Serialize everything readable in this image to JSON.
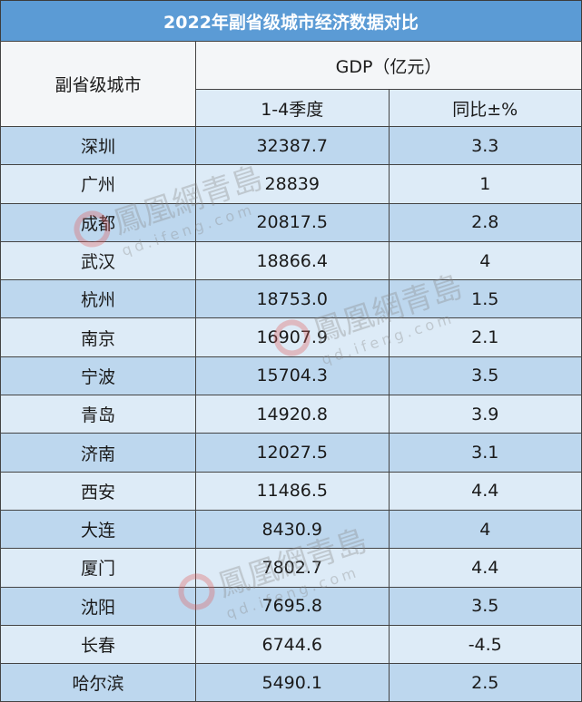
{
  "title": "2022年副省级城市经济数据对比",
  "header": {
    "city": "副省级城市",
    "gdp": "GDP（亿元）",
    "period": "1-4季度",
    "yoy": "同比±%"
  },
  "rows": [
    {
      "city": "深圳",
      "gdp": "32387.7",
      "yoy": "3.3"
    },
    {
      "city": "广州",
      "gdp": "28839",
      "yoy": "1"
    },
    {
      "city": "成都",
      "gdp": "20817.5",
      "yoy": "2.8"
    },
    {
      "city": "武汉",
      "gdp": "18866.4",
      "yoy": "4"
    },
    {
      "city": "杭州",
      "gdp": "18753.0",
      "yoy": "1.5"
    },
    {
      "city": "南京",
      "gdp": "16907.9",
      "yoy": "2.1"
    },
    {
      "city": "宁波",
      "gdp": "15704.3",
      "yoy": "3.5"
    },
    {
      "city": "青岛",
      "gdp": "14920.8",
      "yoy": "3.9"
    },
    {
      "city": "济南",
      "gdp": "12027.5",
      "yoy": "3.1"
    },
    {
      "city": "西安",
      "gdp": "11486.5",
      "yoy": "4.4"
    },
    {
      "city": "大连",
      "gdp": "8430.9",
      "yoy": "4"
    },
    {
      "city": "厦门",
      "gdp": "7802.7",
      "yoy": "4.4"
    },
    {
      "city": "沈阳",
      "gdp": "7695.8",
      "yoy": "3.5"
    },
    {
      "city": "长春",
      "gdp": "6744.6",
      "yoy": "-4.5"
    },
    {
      "city": "哈尔滨",
      "gdp": "5490.1",
      "yoy": "2.5"
    }
  ],
  "watermark": {
    "name": "鳳凰網青島",
    "domain": "qd.ifeng.com"
  },
  "colors": {
    "title_bg": "#5b9bd5",
    "row_dark": "#bdd7ee",
    "row_light": "#ddebf7"
  }
}
